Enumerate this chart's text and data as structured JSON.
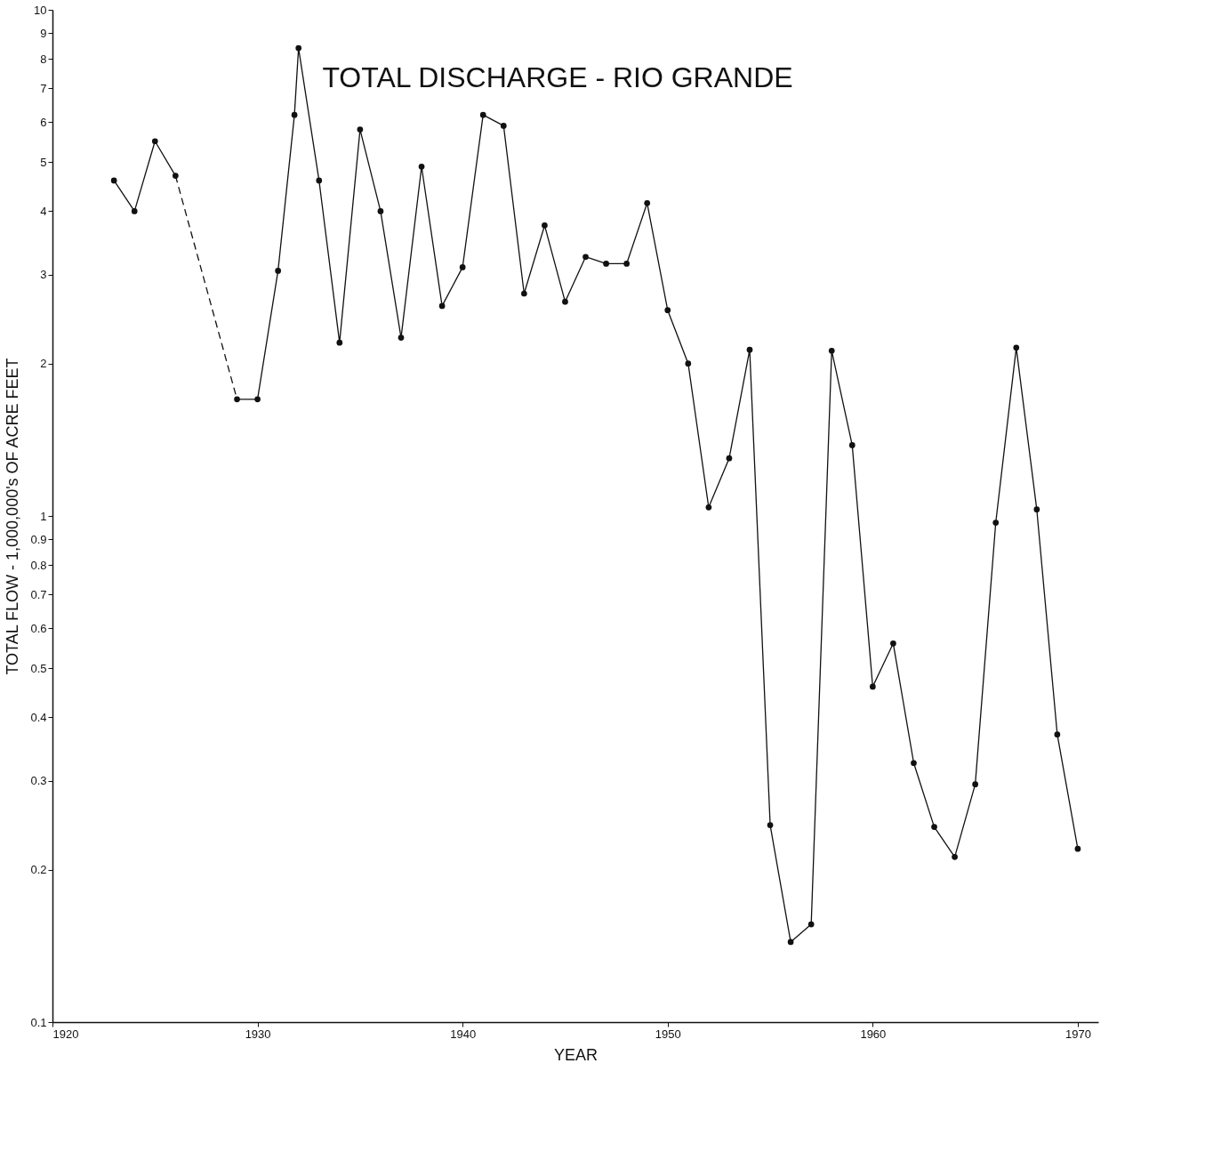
{
  "chart_data": {
    "type": "line",
    "title": "TOTAL DISCHARGE - RIO GRANDE",
    "xlabel": "YEAR",
    "ylabel": "TOTAL FLOW - 1,000,000's OF ACRE FEET",
    "log": "y",
    "grid": false,
    "xlim": [
      1920,
      1971
    ],
    "xticks": [
      1920,
      1930,
      1940,
      1950,
      1960,
      1970
    ],
    "ylim": [
      0.1,
      10
    ],
    "yticks": [
      0.1,
      0.2,
      0.3,
      0.4,
      0.5,
      0.6,
      0.7,
      0.8,
      0.9,
      1,
      2,
      3,
      4,
      5,
      6,
      7,
      8,
      9,
      10
    ],
    "series": [
      {
        "color": "#111111",
        "line_style": "dashed",
        "marker": "none",
        "x": [
          1926,
          1929
        ],
        "values": [
          4.7,
          1.7
        ]
      },
      {
        "color": "#111111",
        "line_style": "solid",
        "marker": "circle",
        "x": [
          1923,
          1924,
          1925,
          1926,
          1927,
          1928,
          1929,
          1930,
          1931,
          1931.8,
          1932,
          1933,
          1934,
          1935,
          1936,
          1937,
          1938,
          1939,
          1940,
          1941,
          1942,
          1943,
          1944,
          1945,
          1946,
          1947,
          1948,
          1949,
          1950,
          1951,
          1952,
          1953,
          1954,
          1955,
          1956,
          1957,
          1958,
          1959,
          1960,
          1961,
          1962,
          1963,
          1964,
          1965,
          1966,
          1967,
          1968,
          1969,
          1970
        ],
        "values": [
          4.6,
          4.0,
          5.5,
          4.7,
          null,
          null,
          1.7,
          1.7,
          3.05,
          6.2,
          8.4,
          4.6,
          2.2,
          5.8,
          4.0,
          2.25,
          4.9,
          2.6,
          3.1,
          6.2,
          5.9,
          2.75,
          3.75,
          2.65,
          3.25,
          3.15,
          3.15,
          4.15,
          2.55,
          2.0,
          1.04,
          1.3,
          2.13,
          0.245,
          0.144,
          0.156,
          2.12,
          1.38,
          0.46,
          0.56,
          0.325,
          0.243,
          0.212,
          0.295,
          0.97,
          2.15,
          1.03,
          0.37,
          0.22
        ]
      }
    ]
  }
}
